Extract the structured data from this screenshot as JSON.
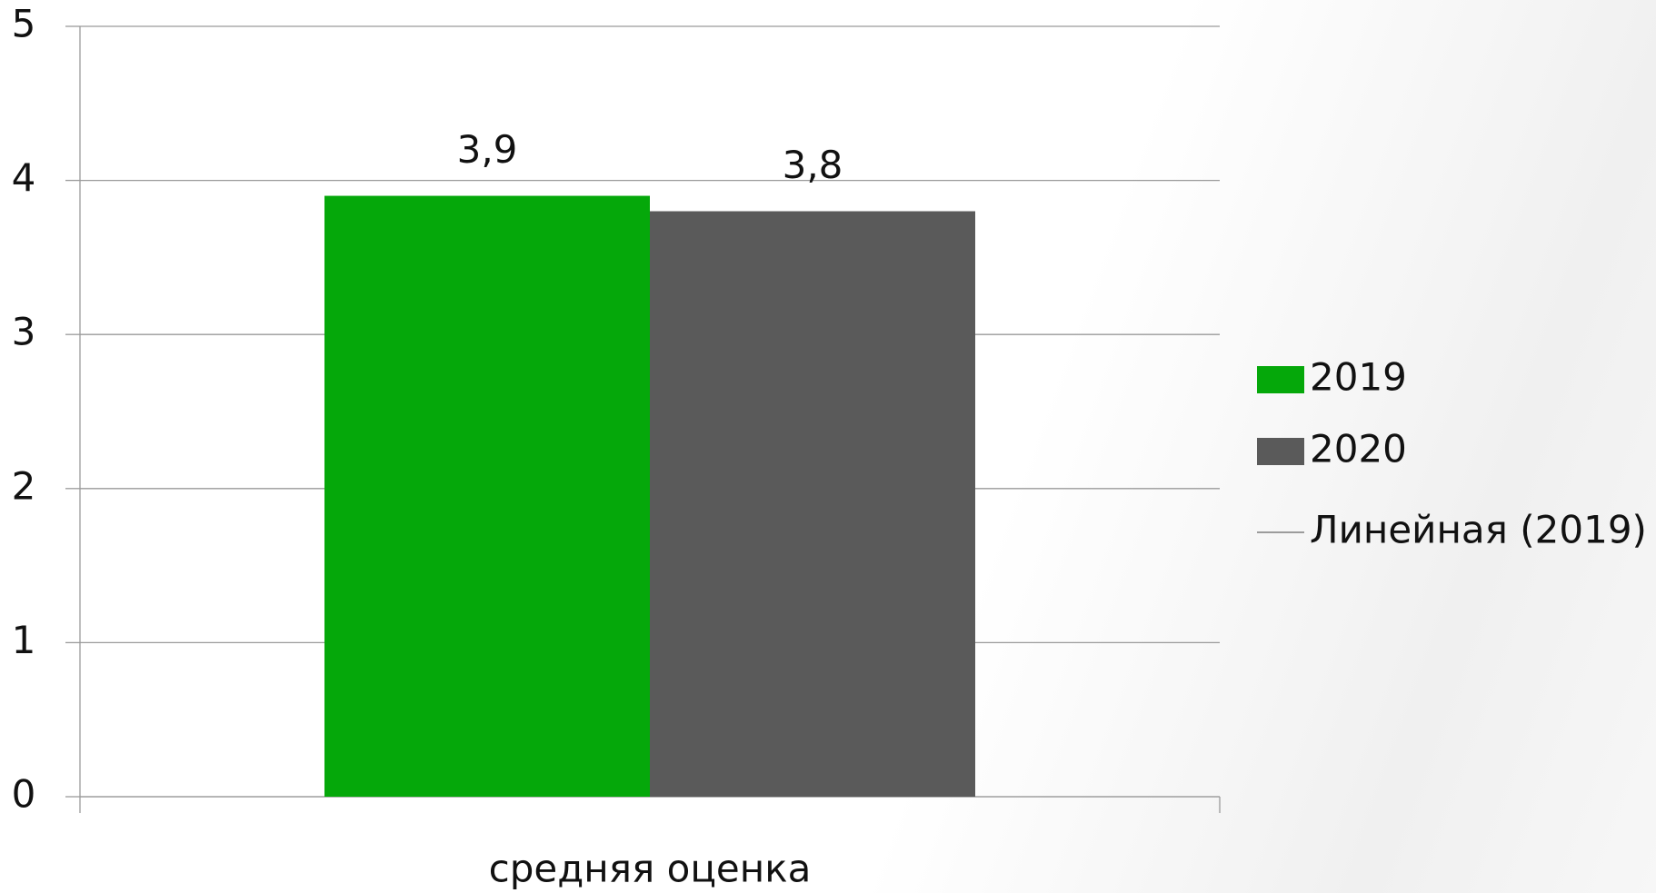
{
  "chart_data": {
    "type": "bar",
    "categories": [
      "средняя оценка"
    ],
    "series": [
      {
        "name": "2019",
        "color": "#05a80a",
        "values": [
          3.9
        ],
        "value_labels": [
          "3,9"
        ]
      },
      {
        "name": "2020",
        "color": "#5a5a5a",
        "values": [
          3.8
        ],
        "value_labels": [
          "3,8"
        ]
      }
    ],
    "trendline": {
      "name": "Линейная (2019)",
      "color": "#7f7f7f",
      "series": 0
    },
    "ylim": [
      0,
      5
    ],
    "yticks": [
      0,
      1,
      2,
      3,
      4,
      5
    ],
    "grid": true,
    "legend": "right"
  }
}
